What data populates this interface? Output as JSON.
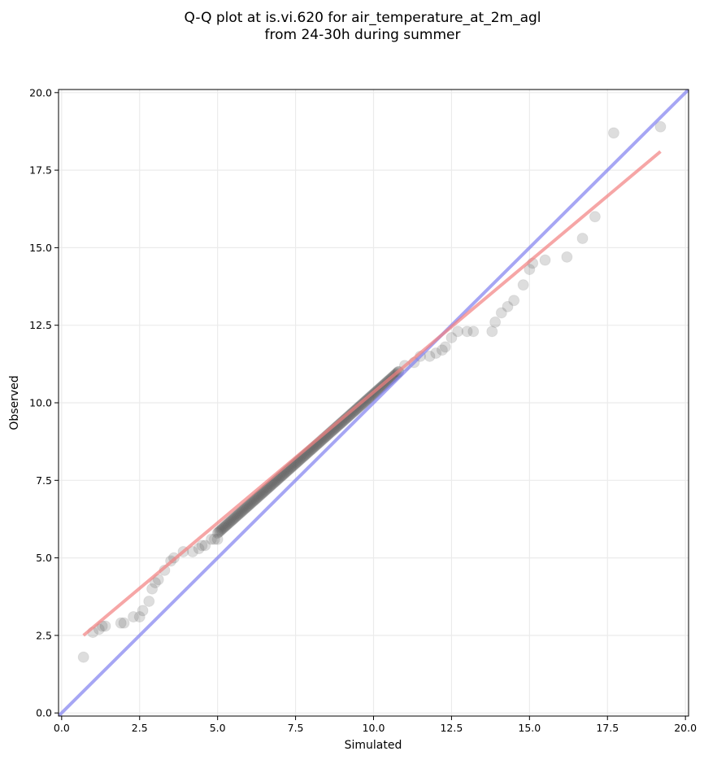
{
  "chart_data": {
    "type": "scatter",
    "title": "Q-Q plot at is.vi.620 for air_temperature_at_2m_agl",
    "subtitle": "from 24-30h during summer",
    "xlabel": "Simulated",
    "ylabel": "Observed",
    "xlim": [
      -0.1,
      20.1
    ],
    "ylim": [
      -0.1,
      20.1
    ],
    "x_ticks": [
      "0.0",
      "2.5",
      "5.0",
      "7.5",
      "10.0",
      "12.5",
      "15.0",
      "17.5",
      "20.0"
    ],
    "y_ticks": [
      "0.0",
      "2.5",
      "5.0",
      "7.5",
      "10.0",
      "12.5",
      "15.0",
      "17.5",
      "20.0"
    ],
    "grid": true,
    "legend": "none",
    "colors": {
      "points": "#555555",
      "fit_line": "#f28080",
      "identity_line": "#8080f0"
    },
    "lines": [
      {
        "kind": "identity",
        "x": [
          -0.1,
          20.1
        ],
        "y": [
          -0.1,
          20.1
        ]
      },
      {
        "kind": "fit",
        "x": [
          0.7,
          19.2
        ],
        "y": [
          2.5,
          18.1
        ]
      }
    ],
    "points_tail_low": {
      "x": [
        0.7,
        1.0,
        1.2,
        1.3,
        1.4,
        1.9,
        2.0,
        2.3,
        2.5,
        2.6,
        2.8,
        2.9,
        3.0,
        3.1,
        3.3,
        3.5,
        3.6,
        3.9,
        4.2,
        4.4,
        4.5,
        4.6,
        4.8,
        4.9,
        5.0
      ],
      "y": [
        1.8,
        2.6,
        2.7,
        2.8,
        2.8,
        2.9,
        2.9,
        3.1,
        3.1,
        3.3,
        3.6,
        4.0,
        4.2,
        4.3,
        4.6,
        4.9,
        5.0,
        5.2,
        5.2,
        5.3,
        5.4,
        5.4,
        5.6,
        5.6,
        5.6
      ]
    },
    "points_tail_high": {
      "x": [
        10.8,
        11.0,
        11.3,
        11.5,
        11.8,
        12.0,
        12.2,
        12.3,
        12.5,
        12.7,
        13.0,
        13.2,
        13.8,
        13.9,
        14.1,
        14.3,
        14.5,
        14.8,
        15.0,
        15.1,
        15.5,
        16.2,
        16.7,
        17.1,
        17.7,
        19.2
      ],
      "y": [
        11.0,
        11.2,
        11.3,
        11.5,
        11.5,
        11.6,
        11.7,
        11.8,
        12.1,
        12.3,
        12.3,
        12.3,
        12.3,
        12.6,
        12.9,
        13.1,
        13.3,
        13.8,
        14.3,
        14.5,
        14.6,
        14.7,
        15.3,
        16.0,
        18.7,
        18.9
      ]
    },
    "points_dense_core": {
      "x_start": 5.0,
      "x_end": 10.8,
      "count": 180,
      "y_start": 5.8,
      "y_end": 11.0
    }
  }
}
